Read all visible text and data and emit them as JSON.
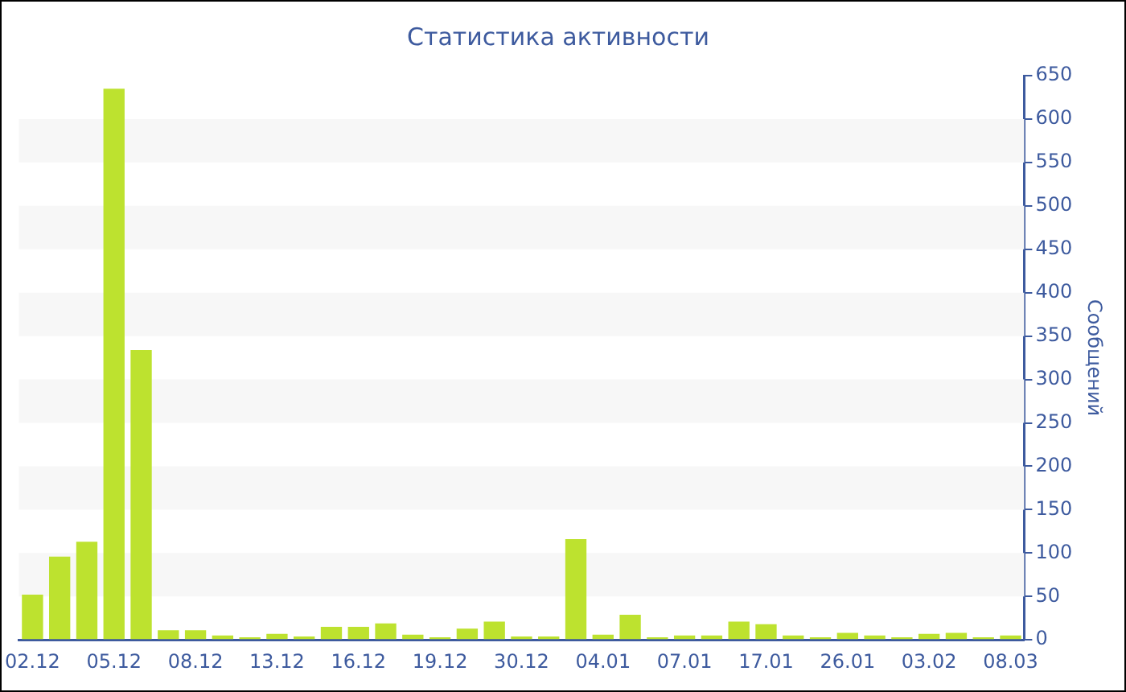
{
  "chart_data": {
    "type": "bar",
    "title": "Статистика активности",
    "ylabel": "Сообщений",
    "categories": [
      "02.12",
      null,
      null,
      "05.12",
      null,
      null,
      "08.12",
      null,
      null,
      "13.12",
      null,
      null,
      "16.12",
      null,
      null,
      "19.12",
      null,
      null,
      "30.12",
      null,
      null,
      "04.01",
      null,
      null,
      "07.01",
      null,
      null,
      "17.01",
      null,
      null,
      "26.01",
      null,
      null,
      "03.02",
      null,
      null,
      "08.03"
    ],
    "values": [
      52,
      96,
      113,
      635,
      334,
      11,
      11,
      5,
      3,
      7,
      4,
      15,
      15,
      19,
      6,
      3,
      13,
      21,
      4,
      4,
      116,
      6,
      29,
      3,
      5,
      5,
      21,
      18,
      5,
      3,
      8,
      5,
      3,
      7,
      8,
      3,
      5
    ],
    "color": "#bde22f",
    "ylim": [
      0,
      650
    ],
    "yticks": [
      0,
      50,
      100,
      150,
      200,
      250,
      300,
      350,
      400,
      450,
      500,
      550,
      600,
      650
    ],
    "bands": [
      {
        "axis": "y",
        "from": 50,
        "to": 100,
        "color": "#f7f7f7"
      },
      {
        "axis": "y",
        "from": 150,
        "to": 200,
        "color": "#f7f7f7"
      },
      {
        "axis": "y",
        "from": 250,
        "to": 300,
        "color": "#f7f7f7"
      },
      {
        "axis": "y",
        "from": 350,
        "to": 400,
        "color": "#f7f7f7"
      },
      {
        "axis": "y",
        "from": 450,
        "to": 500,
        "color": "#f7f7f7"
      },
      {
        "axis": "y",
        "from": 550,
        "to": 600,
        "color": "#f7f7f7"
      }
    ],
    "grid": false,
    "legend": false
  }
}
